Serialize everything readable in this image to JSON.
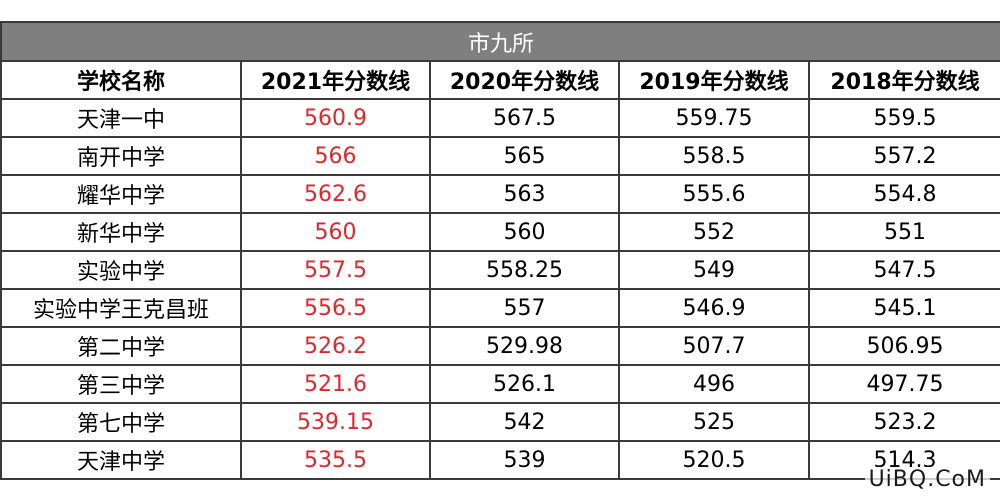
{
  "chart_data": {
    "type": "table",
    "title": "市九所",
    "columns": [
      "学校名称",
      "2021年分数线",
      "2020年分数线",
      "2019年分数线",
      "2018年分数线"
    ],
    "rows": [
      [
        "天津一中",
        "560.9",
        "567.5",
        "559.75",
        "559.5"
      ],
      [
        "南开中学",
        "566",
        "565",
        "558.5",
        "557.2"
      ],
      [
        "耀华中学",
        "562.6",
        "563",
        "555.6",
        "554.8"
      ],
      [
        "新华中学",
        "560",
        "560",
        "552",
        "551"
      ],
      [
        "实验中学",
        "557.5",
        "558.25",
        "549",
        "547.5"
      ],
      [
        "实验中学王克昌班",
        "556.5",
        "557",
        "546.9",
        "545.1"
      ],
      [
        "第二中学",
        "526.2",
        "529.98",
        "507.7",
        "506.95"
      ],
      [
        "第三中学",
        "521.6",
        "526.1",
        "496",
        "497.75"
      ],
      [
        "第七中学",
        "539.15",
        "542",
        "525",
        "523.2"
      ],
      [
        "天津中学",
        "535.5",
        "539",
        "520.5",
        "514.3"
      ]
    ],
    "highlight_column": 1,
    "highlight_color": "#e0262b",
    "title_bar_color": "#7f7f7f"
  },
  "watermark": "UiBQ.CoM"
}
